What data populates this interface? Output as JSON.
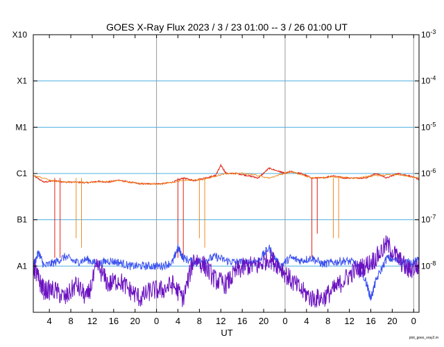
{
  "chart_data": {
    "type": "line",
    "title": "GOES X-Ray Flux   2023 /  3 / 23   01:00 --  3 / 26   01:00   UT",
    "xlabel": "UT",
    "footer": "plot_goes_xray2.m",
    "x_range_hours": [
      0,
      72
    ],
    "x_tick_labels": [
      "4",
      "8",
      "12",
      "16",
      "20",
      "0",
      "4",
      "8",
      "12",
      "16",
      "20",
      "0",
      "4",
      "8",
      "12",
      "16",
      "20",
      "0"
    ],
    "x_tick_hours": [
      3,
      7,
      11,
      15,
      19,
      23,
      27,
      31,
      35,
      39,
      43,
      47,
      51,
      55,
      59,
      63,
      67,
      71
    ],
    "day_boundaries_hours": [
      23,
      47,
      71
    ],
    "y_scale": "log",
    "y_range": [
      1e-09,
      0.001
    ],
    "left_axis_labels": [
      {
        "label": "A1",
        "value": 1e-08
      },
      {
        "label": "B1",
        "value": 1e-07
      },
      {
        "label": "C1",
        "value": 1e-06
      },
      {
        "label": "M1",
        "value": 1e-05
      },
      {
        "label": "X1",
        "value": 0.0001
      },
      {
        "label": "X10",
        "value": 0.001
      }
    ],
    "right_axis_labels": [
      {
        "base": "10",
        "exp": "-8",
        "value": 1e-08
      },
      {
        "base": "10",
        "exp": "-7",
        "value": 1e-07
      },
      {
        "base": "10",
        "exp": "-6",
        "value": 1e-06
      },
      {
        "base": "10",
        "exp": "-5",
        "value": 1e-05
      },
      {
        "base": "10",
        "exp": "-4",
        "value": 0.0001
      },
      {
        "base": "10",
        "exp": "-3",
        "value": 0.001
      }
    ],
    "grid": true,
    "colors": {
      "grid": "#4fb0e0",
      "day_line": "#999999",
      "long_primary": "#e02010",
      "long_secondary": "#f08a20",
      "short_primary": "#3a50f0",
      "short_secondary": "#6a10c0"
    },
    "series": [
      {
        "color": "#e02010",
        "x": [
          0,
          2,
          4,
          6,
          8,
          10,
          12,
          14,
          16,
          18,
          20,
          22,
          24,
          26,
          28,
          30,
          32,
          34,
          35,
          36,
          38,
          40,
          42,
          44,
          46,
          47,
          48,
          50,
          52,
          54,
          56,
          58,
          60,
          62,
          64,
          66,
          68,
          70,
          72
        ],
        "y": [
          9e-07,
          6.5e-07,
          7e-07,
          6.5e-07,
          6.5e-07,
          6.3e-07,
          6.8e-07,
          6.5e-07,
          7.2e-07,
          6.5e-07,
          6e-07,
          6e-07,
          6e-07,
          6.5e-07,
          8e-07,
          7e-07,
          8e-07,
          9e-07,
          1.5e-06,
          1e-06,
          1e-06,
          9e-07,
          8e-07,
          1.3e-06,
          1.1e-06,
          1e-06,
          1.1e-06,
          1e-06,
          8e-07,
          8e-07,
          9e-07,
          8e-07,
          8e-07,
          8e-07,
          1e-06,
          8e-07,
          1e-06,
          9e-07,
          7.5e-07
        ],
        "dips": [
          {
            "x": 4,
            "y": 1.5e-08
          },
          {
            "x": 5,
            "y": 1.5e-08
          },
          {
            "x": 27,
            "y": 1.5e-08
          },
          {
            "x": 28,
            "y": 1.5e-08
          },
          {
            "x": 52,
            "y": 1.5e-08
          },
          {
            "x": 53,
            "y": 5e-08
          }
        ]
      },
      {
        "color": "#f08a20",
        "x": [
          0,
          4,
          8,
          12,
          16,
          20,
          24,
          28,
          32,
          36,
          40,
          44,
          48,
          52,
          56,
          60,
          64,
          68,
          72
        ],
        "y": [
          9e-07,
          6.8e-07,
          6.5e-07,
          6.5e-07,
          7e-07,
          6e-07,
          6e-07,
          7e-07,
          7.5e-07,
          1e-06,
          1e-06,
          8e-07,
          1.1e-06,
          8e-07,
          8.5e-07,
          8e-07,
          9e-07,
          9.5e-07,
          8e-07
        ],
        "dips": [
          {
            "x": 8,
            "y": 4e-08
          },
          {
            "x": 9,
            "y": 2.5e-08
          },
          {
            "x": 31,
            "y": 4e-08
          },
          {
            "x": 32,
            "y": 2.5e-08
          },
          {
            "x": 56,
            "y": 4e-08
          },
          {
            "x": 57,
            "y": 4e-08
          }
        ]
      },
      {
        "color": "#3a50f0",
        "x": [
          0,
          1,
          2,
          4,
          6,
          8,
          10,
          12,
          14,
          16,
          18,
          20,
          22,
          24,
          26,
          27,
          28,
          30,
          32,
          34,
          36,
          38,
          40,
          42,
          44,
          46,
          48,
          50,
          52,
          54,
          56,
          58,
          60,
          62,
          63,
          64,
          66,
          68,
          70,
          72
        ],
        "y": [
          1e-08,
          2e-08,
          1e-08,
          1.2e-08,
          1.6e-08,
          1.2e-08,
          1.4e-08,
          1.1e-08,
          1.3e-08,
          1.2e-08,
          1e-08,
          1e-08,
          1e-08,
          1e-08,
          1.2e-08,
          2.5e-08,
          1.5e-08,
          1.2e-08,
          1.3e-08,
          1.6e-08,
          1.3e-08,
          1.2e-08,
          1.2e-08,
          1.3e-08,
          2.5e-08,
          1e-08,
          1.5e-08,
          1.3e-08,
          1.5e-08,
          1.1e-08,
          1.2e-08,
          1.3e-08,
          1.2e-08,
          5e-09,
          2e-09,
          5e-09,
          1.5e-08,
          1.3e-08,
          1.2e-08,
          1.3e-08
        ]
      },
      {
        "color": "#6a10c0",
        "x": [
          0,
          1,
          2,
          4,
          6,
          8,
          10,
          12,
          14,
          16,
          18,
          20,
          22,
          24,
          26,
          28,
          30,
          32,
          34,
          36,
          38,
          40,
          42,
          44,
          46,
          48,
          50,
          52,
          54,
          56,
          58,
          60,
          62,
          64,
          66,
          68,
          70,
          72
        ],
        "y": [
          1e-08,
          5e-09,
          3e-09,
          3e-09,
          2e-09,
          4e-09,
          2e-09,
          1e-08,
          4e-09,
          5e-09,
          3e-09,
          2e-09,
          3e-09,
          3e-09,
          4e-09,
          2e-09,
          1.5e-08,
          1e-08,
          5e-09,
          4e-09,
          8e-09,
          1e-08,
          1e-08,
          1.5e-08,
          1e-08,
          5e-09,
          3e-09,
          2e-09,
          2e-09,
          3e-09,
          5e-09,
          8e-09,
          1e-08,
          1.5e-08,
          3e-08,
          1.5e-08,
          8e-09,
          1e-08
        ]
      }
    ]
  }
}
